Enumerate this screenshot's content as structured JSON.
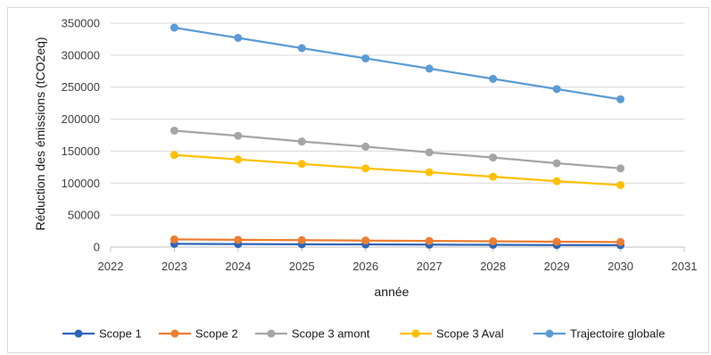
{
  "chart_data": {
    "type": "line",
    "xlabel": "année",
    "ylabel": "Réduction des émissions (tCO2eq)",
    "xlim": [
      2022,
      2031
    ],
    "ylim": [
      0,
      350000
    ],
    "x_ticks": [
      2022,
      2023,
      2024,
      2025,
      2026,
      2027,
      2028,
      2029,
      2030,
      2031
    ],
    "y_ticks": [
      0,
      50000,
      100000,
      150000,
      200000,
      250000,
      300000,
      350000
    ],
    "grid": "horizontal",
    "legend_position": "bottom",
    "x": [
      2023,
      2024,
      2025,
      2026,
      2027,
      2028,
      2029,
      2030
    ],
    "series": [
      {
        "name": "Scope 1",
        "color": "#2e65b8",
        "values": [
          5000,
          4700,
          4400,
          4100,
          3800,
          3500,
          3200,
          2900
        ]
      },
      {
        "name": "Scope 2",
        "color": "#ed7d31",
        "values": [
          12000,
          11400,
          10800,
          10200,
          9600,
          9000,
          8400,
          7800
        ]
      },
      {
        "name": "Scope 3 amont",
        "color": "#a5a5a5",
        "values": [
          182000,
          174000,
          165000,
          157000,
          148000,
          140000,
          131000,
          123000
        ]
      },
      {
        "name": "Scope 3 Aval",
        "color": "#ffc000",
        "values": [
          144000,
          137000,
          130000,
          123000,
          117000,
          110000,
          103000,
          97000
        ]
      },
      {
        "name": "Trajectoire globale",
        "color": "#5b9bd5",
        "values": [
          343000,
          327000,
          311000,
          295000,
          279000,
          263000,
          247000,
          231000
        ]
      }
    ]
  }
}
